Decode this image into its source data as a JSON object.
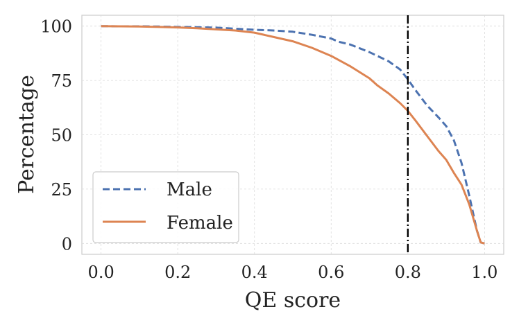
{
  "chart_data": {
    "type": "line",
    "xlabel": "QE score",
    "ylabel": "Percentage",
    "xlim": [
      -0.05,
      1.05
    ],
    "ylim": [
      -5,
      105
    ],
    "x_ticks": [
      0.0,
      0.2,
      0.4,
      0.6,
      0.8,
      1.0
    ],
    "x_tick_labels": [
      "0.0",
      "0.2",
      "0.4",
      "0.6",
      "0.8",
      "1.0"
    ],
    "y_ticks": [
      0,
      25,
      50,
      75,
      100
    ],
    "y_tick_labels": [
      "0",
      "25",
      "50",
      "75",
      "100"
    ],
    "grid": true,
    "legend_position": "lower-left",
    "threshold_line": {
      "x": 0.8,
      "style": "dash-dot",
      "color": "#000000"
    },
    "series": [
      {
        "name": "Male",
        "color": "#4c72b0",
        "style": "dashed",
        "x": [
          0.0,
          0.05,
          0.1,
          0.15,
          0.2,
          0.25,
          0.3,
          0.35,
          0.4,
          0.45,
          0.5,
          0.55,
          0.6,
          0.62,
          0.65,
          0.7,
          0.75,
          0.78,
          0.8,
          0.82,
          0.85,
          0.88,
          0.9,
          0.92,
          0.94,
          0.96,
          0.98,
          0.99,
          1.0
        ],
        "values": [
          100,
          99.9,
          99.9,
          99.8,
          99.6,
          99.5,
          99.3,
          98.8,
          98.3,
          98.0,
          97.4,
          96.0,
          94.3,
          92.8,
          91.5,
          88.0,
          83.8,
          80.0,
          75.5,
          70.5,
          63.5,
          58.0,
          54.0,
          47.5,
          37.0,
          22.0,
          6.0,
          0.5,
          0.0
        ]
      },
      {
        "name": "Female",
        "color": "#dd8452",
        "style": "solid",
        "x": [
          0.0,
          0.05,
          0.1,
          0.15,
          0.2,
          0.25,
          0.3,
          0.35,
          0.4,
          0.45,
          0.5,
          0.55,
          0.6,
          0.65,
          0.7,
          0.72,
          0.75,
          0.78,
          0.8,
          0.82,
          0.85,
          0.88,
          0.9,
          0.92,
          0.94,
          0.96,
          0.98,
          0.99,
          1.0
        ],
        "values": [
          100,
          99.9,
          99.8,
          99.6,
          99.4,
          99.0,
          98.5,
          98.0,
          97.0,
          95.0,
          93.0,
          90.0,
          86.3,
          81.5,
          76.0,
          72.8,
          69.0,
          64.5,
          61.0,
          56.5,
          49.5,
          42.5,
          38.5,
          32.5,
          27.0,
          18.0,
          6.0,
          0.5,
          0.0
        ]
      }
    ]
  }
}
